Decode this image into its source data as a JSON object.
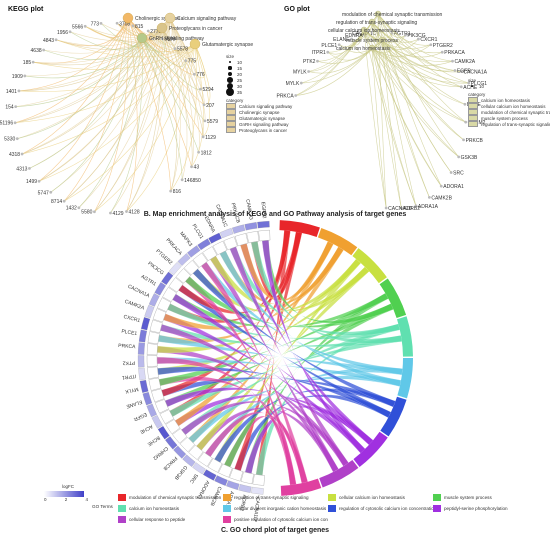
{
  "kegg": {
    "title": "KEGG plot",
    "pathways": [
      {
        "label": "Cholinergic synapse",
        "color": "#f2b867"
      },
      {
        "label": "Calcium signaling pathway",
        "color": "#e6d2a0"
      },
      {
        "label": "Proteoglycans in cancer",
        "color": "#d9c48a"
      },
      {
        "label": "GnRH signaling pathway",
        "color": "#b5c98a"
      },
      {
        "label": "Glutamatergic synapse",
        "color": "#e9cf7c"
      }
    ],
    "genes": [
      "4128",
      "4129",
      "5580",
      "1432",
      "8714",
      "5747",
      "1499",
      "4313",
      "4318",
      "5330",
      "51196",
      "154",
      "1401",
      "1909",
      "185",
      "4638",
      "4843",
      "1956",
      "5566",
      "773",
      "3708",
      "815",
      "2770",
      "5598",
      "5578",
      "775",
      "776",
      "5294",
      "207",
      "5579",
      "1129",
      "1812",
      "43",
      "146850",
      "816"
    ],
    "size_legend_title": "size",
    "size_legend": [
      "10",
      "15",
      "20",
      "25",
      "30",
      "35"
    ],
    "category_legend_title": "category",
    "category_legend": [
      "Calcium signaling pathway",
      "Cholinergic synapse",
      "Glutamatergic synapse",
      "GnRH signaling pathway",
      "Proteoglycans in cancer"
    ]
  },
  "go": {
    "title": "GO plot",
    "terms": [
      {
        "label": "modulation of chemical synaptic transmission",
        "color": "#d9d9a6"
      },
      {
        "label": "regulation of trans-synaptic signaling",
        "color": "#d9d9a6"
      },
      {
        "label": "cellular calcium ion homeostasis",
        "color": "#d9d9a6"
      },
      {
        "label": "muscle system process",
        "color": "#d9d9a6"
      },
      {
        "label": "calcium ion homeostasis",
        "color": "#d9d9a6"
      }
    ],
    "genes_left": [
      "PRKCA",
      "MYLK",
      "MYLK",
      "PTK2",
      "ITPR1",
      "PLCE1",
      "ELANE",
      "EDNRA",
      "CACNA1C",
      "AGTR1",
      "PIK3CG",
      "CXCR1",
      "PTGER2",
      "PRKACA",
      "CAMK2A",
      "CACNA1A",
      "PLCG1"
    ],
    "genes_right": [
      "EGFR",
      "ACHE",
      "BCHE",
      "CHRM2",
      "PRKCB",
      "GSK3B",
      "SRC",
      "ADORA1",
      "CAMK2B",
      "ADRA1A",
      "ADRB2",
      "CACNA1D"
    ],
    "size_legend_title": "size",
    "size_legend": [
      "10"
    ],
    "category_legend_title": "category",
    "category_legend": [
      "calcium ion homeostasis",
      "cellular calcium ion homeostasis",
      "modulation of chemical synaptic transmission",
      "muscle system process",
      "regulation of trans-synaptic signaling"
    ]
  },
  "caption_b": "B. Map enrichment analysis of KEGG and GO Pathway analysis of target genes",
  "chord": {
    "genes": [
      "CACNA1D",
      "ADRB2",
      "ADRA1A",
      "CAMK2B",
      "ADORA1",
      "SRC",
      "GSK3B",
      "PRKCB",
      "CHRM2",
      "BCHE",
      "ACHE",
      "EGFR",
      "ELANE",
      "MYLK",
      "ITPR1",
      "PTK2",
      "PRKCA",
      "PLCE1",
      "CXCR1",
      "CAMK2A",
      "CACNA1A",
      "AGTR1",
      "PIK3CG",
      "PTGER2",
      "PRKACA",
      "MAPK3",
      "PLCG1",
      "EDNRA",
      "CACNA1C",
      "PRKACB",
      "CAMK2G",
      "EGFR2"
    ],
    "logfc_title": "logFC",
    "logfc_ticks": [
      "0",
      "2",
      "4"
    ],
    "go_terms_label": "GO Terms",
    "terms": [
      {
        "label": "modulation of chemical synaptic transmission",
        "color": "#e8262a"
      },
      {
        "label": "regulation of trans-synaptic signaling",
        "color": "#f0a030"
      },
      {
        "label": "cellular calcium ion homeostasis",
        "color": "#c8e040"
      },
      {
        "label": "muscle system process",
        "color": "#50d050"
      },
      {
        "label": "calcium ion homeostasis",
        "color": "#60e0b0"
      },
      {
        "label": "cellular divalent inorganic cation homeostasis",
        "color": "#60c8e8"
      },
      {
        "label": "regulation of cytosolic calcium ion concentration",
        "color": "#3050d8"
      },
      {
        "label": "peptidyl-serine phosphorylation",
        "color": "#a030e0"
      },
      {
        "label": "cellular response to peptide",
        "color": "#b040c8"
      },
      {
        "label": "positive regulation of cytosolic calcium ion concentration",
        "color": "#e040a0"
      }
    ]
  },
  "caption_c": "C. GO chord plot of target genes"
}
